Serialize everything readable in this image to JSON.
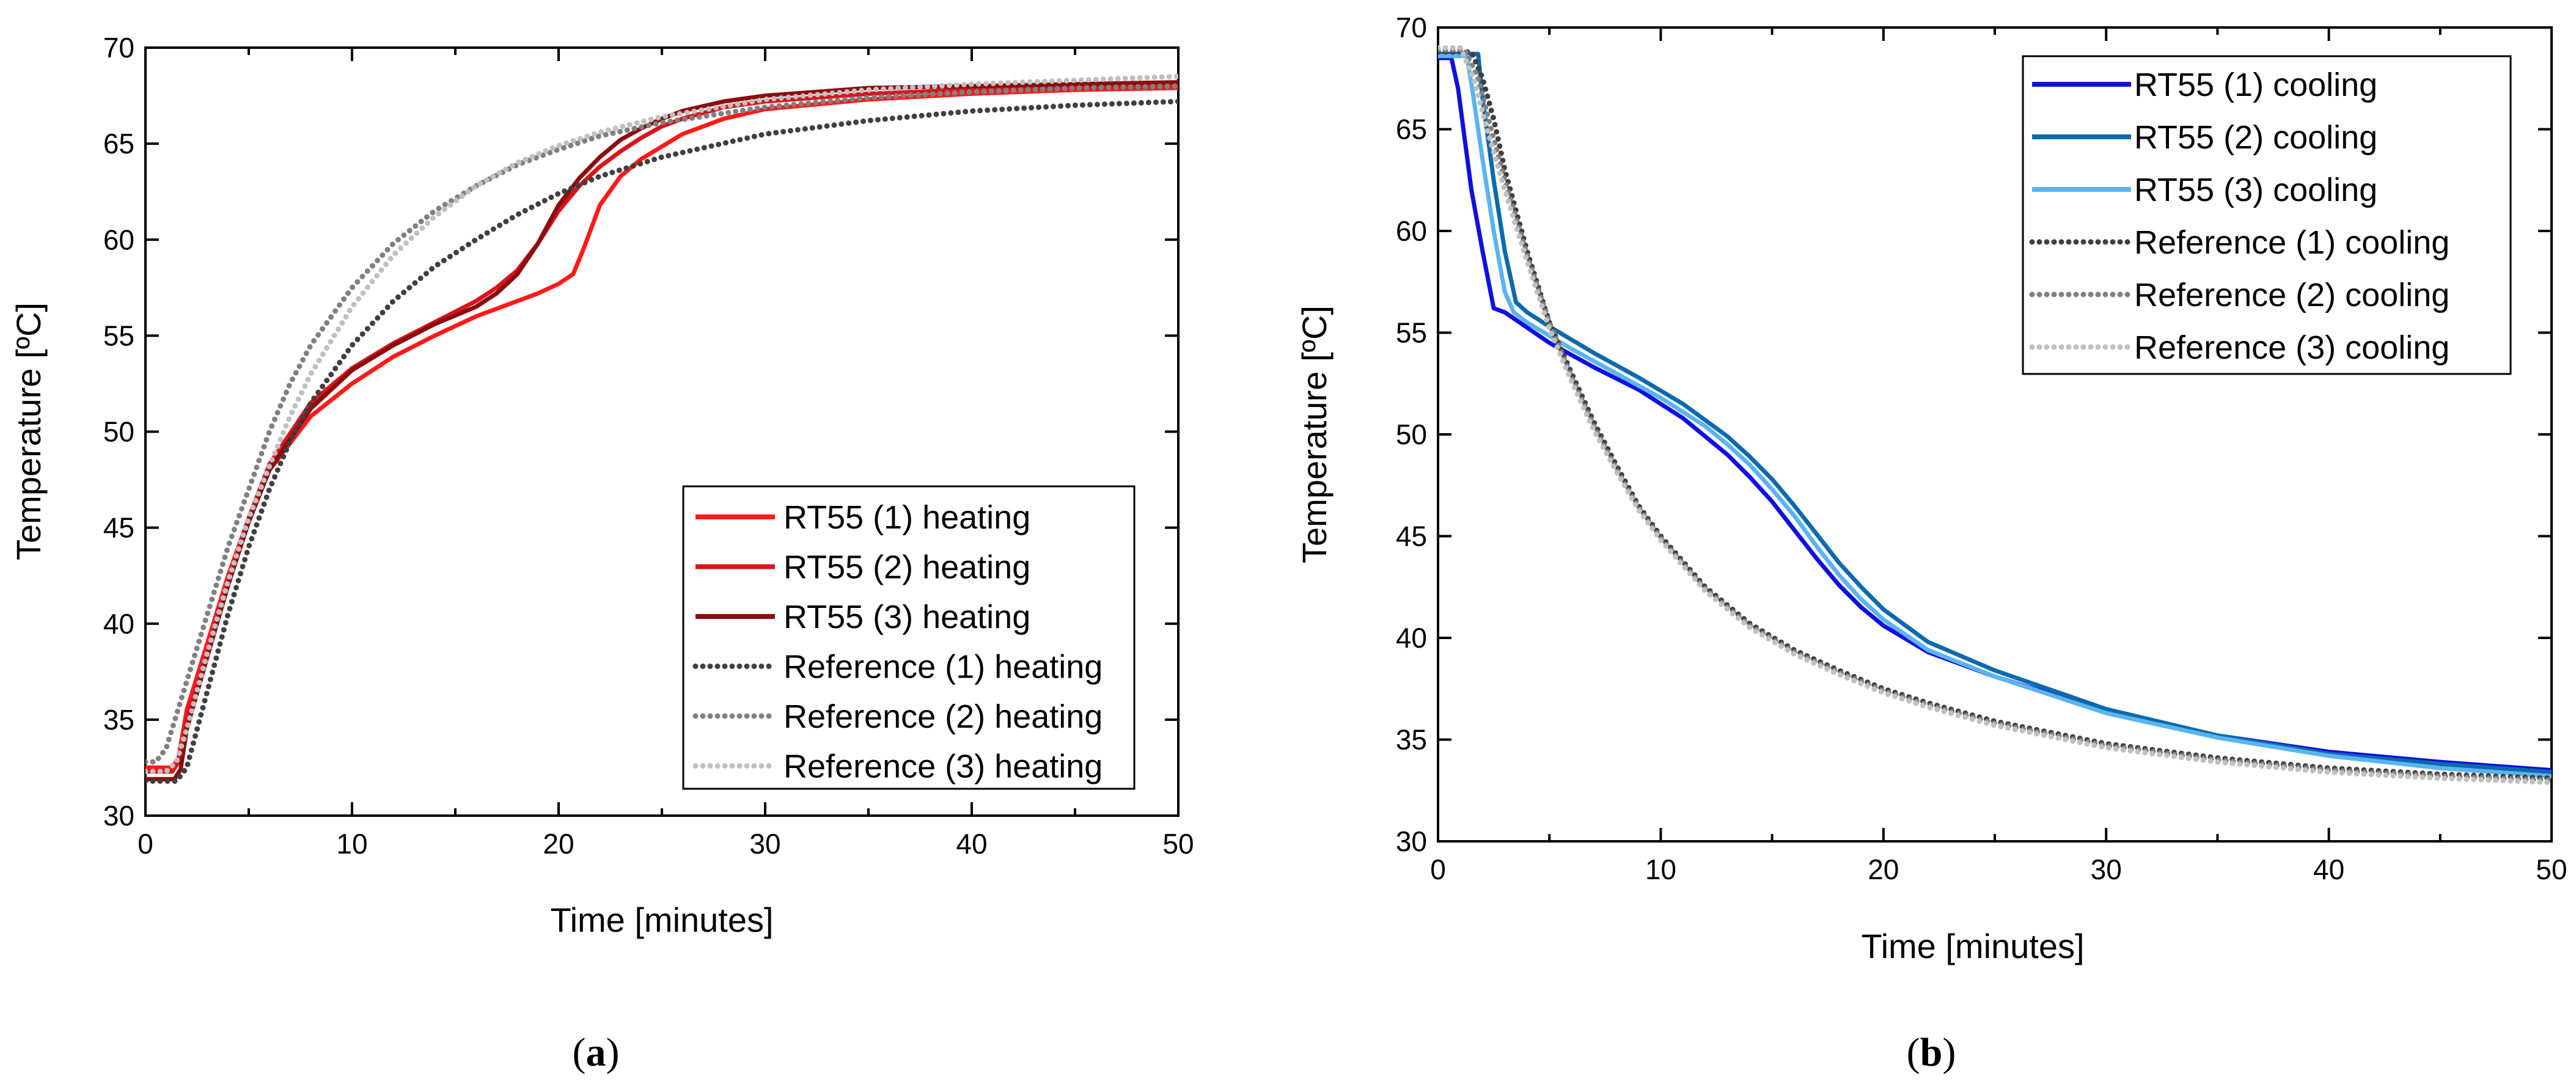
{
  "figure": {
    "captions": [
      {
        "open": "(",
        "letter": "a",
        "close": ")"
      },
      {
        "open": "(",
        "letter": "b",
        "close": ")"
      }
    ]
  },
  "chart_data": [
    {
      "type": "line",
      "panel": "a",
      "title": "",
      "xlabel": "Time [minutes]",
      "ylabel": "Temperature [ºC]",
      "xlim": [
        0,
        50
      ],
      "ylim": [
        30,
        70
      ],
      "xticks": [
        0,
        10,
        20,
        30,
        40,
        50
      ],
      "yticks": [
        30,
        35,
        40,
        45,
        50,
        55,
        60,
        65,
        70
      ],
      "grid": false,
      "legend_position": "bottom-right",
      "series": [
        {
          "name": "RT55 (1) heating",
          "color": "#ff1a1a",
          "style": "solid",
          "x": [
            0,
            1.3,
            1.6,
            2,
            3,
            4,
            5,
            6,
            8,
            10,
            12,
            14,
            16,
            18,
            19,
            20,
            20.7,
            21.2,
            22,
            23,
            24,
            26,
            28,
            30,
            35,
            40,
            45,
            50
          ],
          "y": [
            32.5,
            32.5,
            33,
            35.5,
            39,
            42.5,
            45.5,
            48,
            50.8,
            52.5,
            53.9,
            55,
            56,
            56.8,
            57.2,
            57.7,
            58.2,
            59.5,
            61.8,
            63.3,
            64.2,
            65.5,
            66.3,
            66.8,
            67.3,
            67.6,
            67.8,
            67.9
          ]
        },
        {
          "name": "RT55 (2) heating",
          "color": "#d9141c",
          "style": "solid",
          "x": [
            0,
            1.3,
            1.6,
            2,
            3,
            4,
            5,
            6,
            8,
            10,
            12,
            14,
            16,
            17,
            18,
            19,
            20,
            21,
            22,
            23,
            24,
            25,
            26,
            28,
            30,
            35,
            40,
            45,
            50
          ],
          "y": [
            32.3,
            32.3,
            32.8,
            35,
            38.5,
            42,
            45.5,
            48.3,
            51.5,
            53.3,
            54.6,
            55.7,
            56.8,
            57.5,
            58.4,
            59.8,
            61.5,
            62.8,
            63.8,
            64.6,
            65.3,
            65.9,
            66.3,
            66.9,
            67.2,
            67.6,
            67.8,
            67.9,
            68
          ]
        },
        {
          "name": "RT55 (3) heating",
          "color": "#8b0d0d",
          "style": "solid",
          "x": [
            0,
            1.4,
            1.7,
            2,
            3,
            4,
            5,
            6,
            8,
            10,
            12,
            14,
            16,
            17,
            18,
            19,
            20,
            21,
            22,
            23,
            24,
            25,
            26,
            28,
            30,
            35,
            40,
            45,
            50
          ],
          "y": [
            31.9,
            31.9,
            32.4,
            34.5,
            38.3,
            42,
            45.3,
            48,
            51.2,
            53.2,
            54.5,
            55.6,
            56.5,
            57.2,
            58.2,
            59.8,
            61.8,
            63.2,
            64.3,
            65.2,
            65.8,
            66.3,
            66.7,
            67.2,
            67.5,
            67.9,
            68,
            68.1,
            68.2
          ]
        },
        {
          "name": "Reference (1) heating",
          "color": "#404040",
          "style": "dotted",
          "x": [
            0,
            1.5,
            2,
            3,
            4,
            5,
            6,
            7,
            8,
            10,
            12,
            14,
            16,
            18,
            20,
            22,
            25,
            30,
            35,
            40,
            45,
            50
          ],
          "y": [
            31.8,
            31.8,
            32.5,
            36.5,
            40.5,
            44,
            47,
            49.5,
            51.5,
            54.5,
            56.8,
            58.6,
            60,
            61.3,
            62.4,
            63.3,
            64.3,
            65.5,
            66.2,
            66.7,
            67,
            67.2
          ]
        },
        {
          "name": "Reference (2) heating",
          "color": "#808080",
          "style": "dotted",
          "x": [
            0,
            0.5,
            1,
            2,
            3,
            4,
            5,
            6,
            7,
            8,
            10,
            12,
            14,
            16,
            18,
            20,
            22,
            25,
            30,
            35,
            40,
            45,
            50
          ],
          "y": [
            32.8,
            32.8,
            33.5,
            37,
            40.5,
            44,
            47,
            50,
            52.5,
            54.5,
            57.5,
            59.8,
            61.5,
            62.8,
            63.9,
            64.7,
            65.4,
            66.1,
            66.9,
            67.4,
            67.7,
            67.9,
            68
          ]
        },
        {
          "name": "Reference (3) heating",
          "color": "#c0c0c0",
          "style": "dotted",
          "x": [
            0,
            1,
            1.5,
            2,
            3,
            4,
            5,
            6,
            7,
            8,
            10,
            12,
            14,
            16,
            18,
            20,
            22,
            25,
            30,
            35,
            40,
            45,
            50
          ],
          "y": [
            32.3,
            32.3,
            32.8,
            34.5,
            38.5,
            42.2,
            45.5,
            48.2,
            50.8,
            53,
            56.5,
            59.2,
            61.2,
            62.8,
            64,
            64.9,
            65.6,
            66.4,
            67.3,
            67.8,
            68.1,
            68.3,
            68.5
          ]
        }
      ]
    },
    {
      "type": "line",
      "panel": "b",
      "title": "",
      "xlabel": "Time [minutes]",
      "ylabel": "Temperature [ºC]",
      "xlim": [
        0,
        50
      ],
      "ylim": [
        30,
        70
      ],
      "xticks": [
        0,
        10,
        20,
        30,
        40,
        50
      ],
      "yticks": [
        30,
        35,
        40,
        45,
        50,
        55,
        60,
        65,
        70
      ],
      "grid": false,
      "legend_position": "top-right",
      "series": [
        {
          "name": "RT55 (1) cooling",
          "color": "#1010e0",
          "style": "solid",
          "x": [
            0,
            0.6,
            0.9,
            1.2,
            1.5,
            2,
            2.5,
            3,
            5,
            7,
            9,
            11,
            13,
            14,
            15,
            16,
            17,
            18,
            19,
            20,
            22,
            25,
            30,
            35,
            40,
            45,
            50
          ],
          "y": [
            68.5,
            68.5,
            67,
            64.5,
            62,
            59,
            56.2,
            56,
            54.5,
            53.3,
            52.2,
            50.8,
            49,
            47.9,
            46.7,
            45.3,
            43.9,
            42.6,
            41.5,
            40.6,
            39.3,
            38.1,
            36.4,
            35.2,
            34.4,
            33.9,
            33.5
          ]
        },
        {
          "name": "RT55 (2) cooling",
          "color": "#0d6aaa",
          "style": "solid",
          "x": [
            0,
            1.8,
            2,
            2.5,
            3,
            3.5,
            4,
            5,
            7,
            9,
            11,
            13,
            14,
            15,
            16,
            17,
            18,
            19,
            20,
            22,
            25,
            30,
            35,
            40,
            45,
            50
          ],
          "y": [
            68.7,
            68.7,
            66.5,
            62.5,
            59,
            56.5,
            56,
            55.3,
            54,
            52.8,
            51.5,
            49.9,
            48.9,
            47.8,
            46.5,
            45.1,
            43.7,
            42.5,
            41.4,
            39.8,
            38.4,
            36.5,
            35.2,
            34.3,
            33.8,
            33.4
          ]
        },
        {
          "name": "RT55 (3) cooling",
          "color": "#5ab4f0",
          "style": "solid",
          "x": [
            0,
            1.3,
            1.6,
            2,
            2.5,
            3,
            3.4,
            4,
            6,
            8,
            10,
            12,
            13,
            14,
            15,
            16,
            17,
            18,
            19,
            20,
            22,
            25,
            30,
            35,
            40,
            45,
            50
          ],
          "y": [
            68.6,
            68.6,
            66.5,
            63.5,
            60,
            57,
            56,
            55.5,
            54.2,
            53,
            51.8,
            50.4,
            49.5,
            48.5,
            47.3,
            46,
            44.5,
            43.1,
            41.9,
            40.9,
            39.4,
            38.1,
            36.3,
            35.1,
            34.2,
            33.6,
            33.2
          ]
        },
        {
          "name": "Reference (1) cooling",
          "color": "#404040",
          "style": "dotted",
          "x": [
            0,
            1.5,
            2,
            2.5,
            3,
            4,
            5,
            6,
            7,
            8,
            9,
            10,
            12,
            14,
            16,
            18,
            20,
            22,
            25,
            30,
            35,
            40,
            45,
            50
          ],
          "y": [
            68.8,
            68.8,
            67.5,
            65.5,
            63,
            59,
            55.5,
            53,
            50.6,
            48.5,
            46.5,
            45,
            42.5,
            40.7,
            39.4,
            38.4,
            37.5,
            36.8,
            35.9,
            34.8,
            34.1,
            33.6,
            33.3,
            33.1
          ]
        },
        {
          "name": "Reference (2) cooling",
          "color": "#808080",
          "style": "dotted",
          "x": [
            0,
            1.2,
            1.8,
            2.5,
            3,
            4,
            5,
            6,
            7,
            8,
            9,
            10,
            12,
            14,
            16,
            18,
            20,
            22,
            25,
            30,
            35,
            40,
            45,
            50
          ],
          "y": [
            68.9,
            68.9,
            67.5,
            64.5,
            62.5,
            58.8,
            55.5,
            52.8,
            50.4,
            48.3,
            46.4,
            44.9,
            42.4,
            40.6,
            39.3,
            38.3,
            37.4,
            36.7,
            35.8,
            34.7,
            34,
            33.5,
            33.2,
            33
          ]
        },
        {
          "name": "Reference (3) cooling",
          "color": "#c0c0c0",
          "style": "dotted",
          "x": [
            0,
            1,
            1.6,
            2.2,
            3,
            4,
            5,
            6,
            7,
            8,
            9,
            10,
            12,
            14,
            16,
            18,
            20,
            22,
            25,
            30,
            35,
            40,
            45,
            50
          ],
          "y": [
            69,
            69,
            67.5,
            65,
            62,
            58.5,
            55.2,
            52.6,
            50.2,
            48.2,
            46.3,
            44.8,
            42.3,
            40.5,
            39.2,
            38.2,
            37.3,
            36.6,
            35.7,
            34.6,
            33.9,
            33.4,
            33.1,
            32.9
          ]
        }
      ]
    }
  ]
}
